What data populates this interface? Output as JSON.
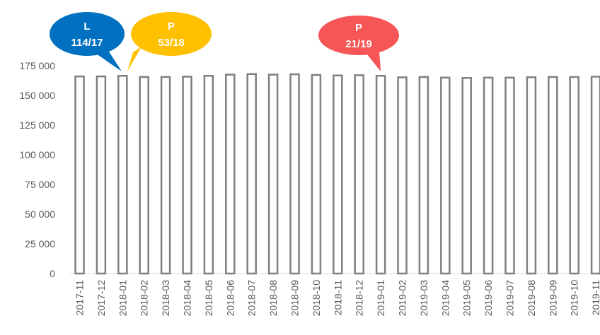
{
  "chart_data": {
    "type": "bar",
    "categories": [
      "2017-11",
      "2017-12",
      "2018-01",
      "2018-02",
      "2018-03",
      "2018-04",
      "2018-05",
      "2018-06",
      "2018-07",
      "2018-08",
      "2018-09",
      "2018-10",
      "2018-11",
      "2018-12",
      "2019-01",
      "2019-02",
      "2019-03",
      "2019-04",
      "2019-05",
      "2019-06",
      "2019-07",
      "2019-08",
      "2019-09",
      "2019-10",
      "2019-11"
    ],
    "values": [
      166000,
      166000,
      166500,
      165500,
      165500,
      165800,
      166500,
      167500,
      168000,
      167500,
      167800,
      167200,
      166800,
      167000,
      166500,
      165200,
      165500,
      165000,
      164700,
      165000,
      165000,
      165300,
      165500,
      165500,
      165800
    ],
    "ylim": [
      0,
      175000
    ],
    "yticks": [
      0,
      25000,
      50000,
      75000,
      100000,
      125000,
      150000,
      175000
    ],
    "ytick_labels": [
      "0",
      "25 000",
      "50 000",
      "75 000",
      "100 000",
      "125 000",
      "150 000",
      "175 000"
    ],
    "title": "",
    "xlabel": "",
    "ylabel": "",
    "grid": false,
    "bar_fill": "#ffffff",
    "bar_stroke": "#7f7f7f",
    "annotations": [
      {
        "line1": "L",
        "line2": "114/17",
        "color": "#0070c0",
        "category": "2018-01"
      },
      {
        "line1": "P",
        "line2": "53/18",
        "color": "#ffc000",
        "category": "2018-01"
      },
      {
        "line1": "P",
        "line2": "21/19",
        "color": "#f75656",
        "category": "2019-01"
      }
    ]
  }
}
